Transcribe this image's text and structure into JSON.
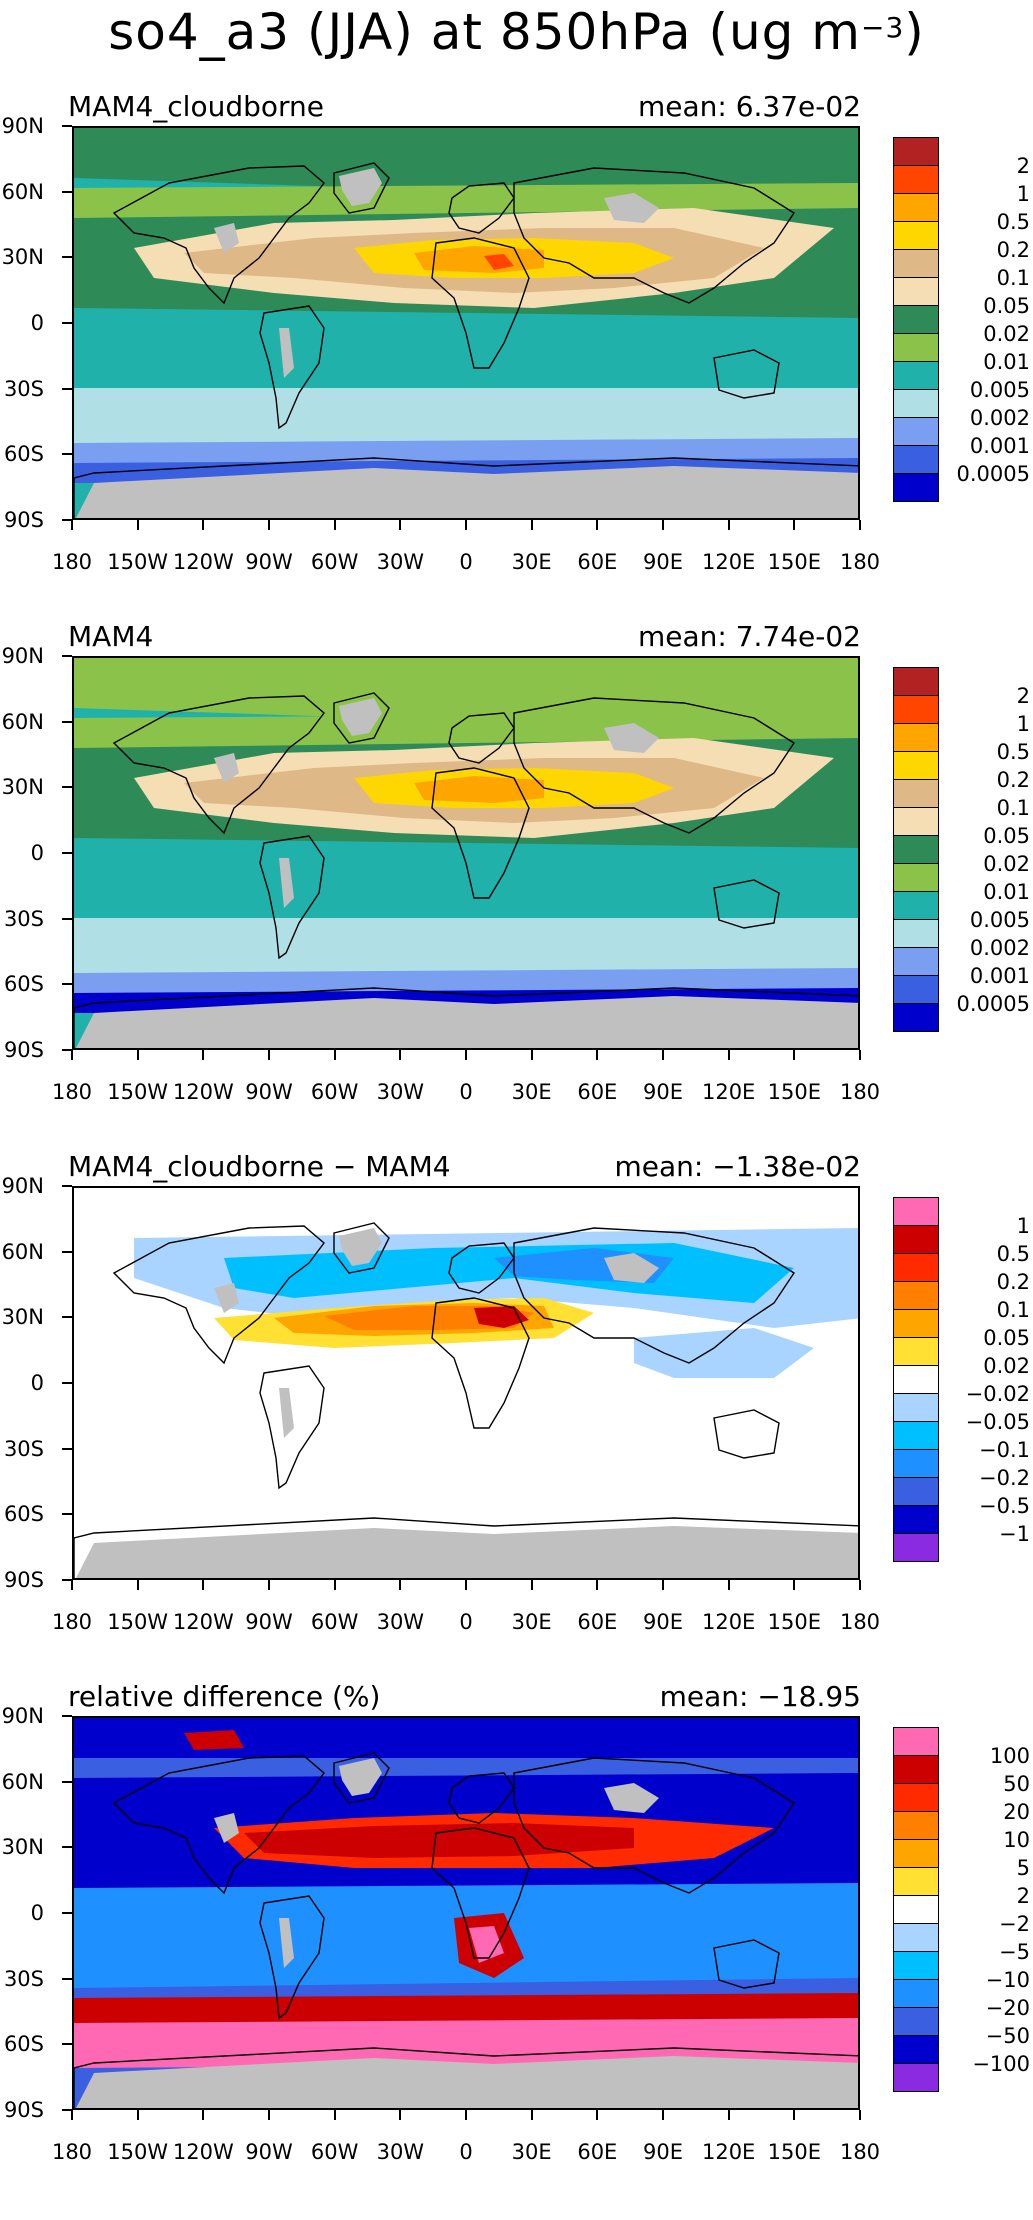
{
  "figure": {
    "title_main": "so4_a3 (JJA) at 850hPa (ug m",
    "title_exp": "−3",
    "title_close": ")"
  },
  "axes": {
    "lat_labels": [
      "90N",
      "60N",
      "30N",
      "0",
      "30S",
      "60S",
      "90S"
    ],
    "lon_labels": [
      "180",
      "150W",
      "120W",
      "90W",
      "60W",
      "30W",
      "0",
      "30E",
      "60E",
      "90E",
      "120E",
      "150E",
      "180"
    ]
  },
  "colors": {
    "land_missing": "#c0c0c0",
    "coastline": "#000000"
  },
  "panels": [
    {
      "id": "mam4-cloudborne",
      "title": "MAM4_cloudborne",
      "mean_label": "mean: 6.37e-02",
      "levels": [
        "2",
        "1",
        "0.5",
        "0.2",
        "0.1",
        "0.05",
        "0.02",
        "0.01",
        "0.005",
        "0.002",
        "0.001",
        "0.0005"
      ],
      "colors": [
        "#b22222",
        "#ff4500",
        "#ffa500",
        "#ffd700",
        "#deb887",
        "#f5deb3",
        "#2e8b57",
        "#8bc34a",
        "#20b2aa",
        "#b0e0e6",
        "#7b9ff0",
        "#3a5fe0",
        "#0000cd"
      ]
    },
    {
      "id": "mam4",
      "title": "MAM4",
      "mean_label": "mean: 7.74e-02",
      "levels": [
        "2",
        "1",
        "0.5",
        "0.2",
        "0.1",
        "0.05",
        "0.02",
        "0.01",
        "0.005",
        "0.002",
        "0.001",
        "0.0005"
      ],
      "colors": [
        "#b22222",
        "#ff4500",
        "#ffa500",
        "#ffd700",
        "#deb887",
        "#f5deb3",
        "#2e8b57",
        "#8bc34a",
        "#20b2aa",
        "#b0e0e6",
        "#7b9ff0",
        "#3a5fe0",
        "#0000cd"
      ]
    },
    {
      "id": "difference",
      "title": "MAM4_cloudborne − MAM4",
      "mean_label": "mean: −1.38e-02",
      "levels": [
        "1",
        "0.5",
        "0.2",
        "0.1",
        "0.05",
        "0.02",
        "−0.02",
        "−0.05",
        "−0.1",
        "−0.2",
        "−0.5",
        "−1"
      ],
      "colors": [
        "#ff69b4",
        "#cc0000",
        "#ff2a00",
        "#ff7f00",
        "#ffa500",
        "#ffe033",
        "#ffffff",
        "#a8d4ff",
        "#00bfff",
        "#1e90ff",
        "#3a5fe0",
        "#0000cd",
        "#8a2be2"
      ]
    },
    {
      "id": "relative-difference",
      "title": "relative difference (%)",
      "mean_label": "mean: −18.95",
      "levels": [
        "100",
        "50",
        "20",
        "10",
        "5",
        "2",
        "−2",
        "−5",
        "−10",
        "−20",
        "−50",
        "−100"
      ],
      "colors": [
        "#ff69b4",
        "#cc0000",
        "#ff2a00",
        "#ff7f00",
        "#ffa500",
        "#ffe033",
        "#ffffff",
        "#a8d4ff",
        "#00bfff",
        "#1e90ff",
        "#3a5fe0",
        "#0000cd",
        "#8a2be2"
      ]
    }
  ]
}
